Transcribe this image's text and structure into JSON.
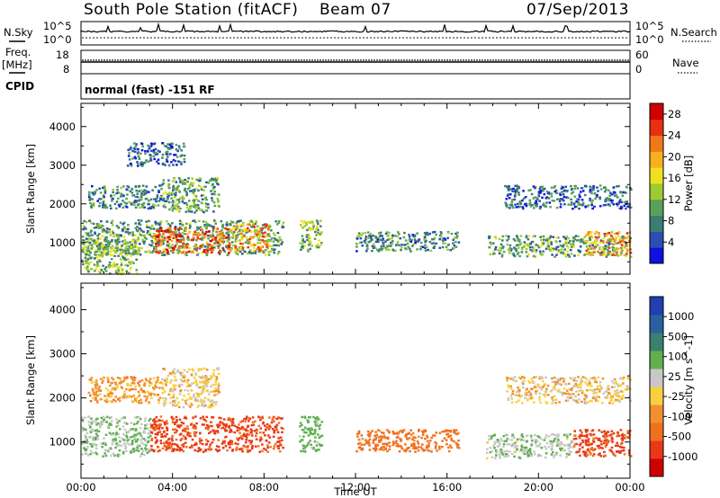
{
  "header": {
    "station": "South Pole Station (fitACF)",
    "beam": "Beam 07",
    "date": "07/Sep/2013"
  },
  "aux_panels": {
    "nsky_label": "N.Sky",
    "nsky_scale_hi": "10^5",
    "nsky_scale_lo": "10^0",
    "nsearch_label": "N.Search",
    "nsearch_scale_hi": "10^5",
    "nsearch_scale_lo": "10^0",
    "freq_label": "Freq.",
    "freq_unit": "[MHz]",
    "freq_hi": "18",
    "freq_lo": "8",
    "nave_label": "Nave",
    "nave_hi": "60",
    "nave_lo": "0",
    "cpid_label": "CPID",
    "cpid_text": "normal (fast) -151 RF"
  },
  "chart_data": [
    {
      "type": "heatmap",
      "panel": "power",
      "ylabel": "Slant Range [km]",
      "xlabel": "",
      "x_ticks": [
        "00:00",
        "04:00",
        "08:00",
        "12:00",
        "16:00",
        "20:00",
        "00:00"
      ],
      "y_ticks": [
        1000,
        2000,
        3000,
        4000
      ],
      "xlim_hours": [
        0,
        24
      ],
      "ylim": [
        180,
        4600
      ],
      "colorbar": {
        "label": "Power [dB]",
        "ticks": [
          4,
          8,
          12,
          16,
          20,
          24,
          28
        ],
        "range": [
          0,
          30
        ],
        "colors": [
          "#1010e0",
          "#2a4fb0",
          "#3a7e72",
          "#5aa05a",
          "#9ccc30",
          "#f0e020",
          "#f8b020",
          "#f07818",
          "#e83010",
          "#d00000"
        ]
      },
      "regions": [
        {
          "t0": 0.0,
          "t1": 8.8,
          "r0": 700,
          "r1": 1600,
          "value": 10
        },
        {
          "t0": 3.2,
          "t1": 6.5,
          "r0": 750,
          "r1": 1400,
          "value": 24
        },
        {
          "t0": 6.5,
          "t1": 8.2,
          "r0": 800,
          "r1": 1500,
          "value": 20
        },
        {
          "t0": 0.0,
          "t1": 2.5,
          "r0": 200,
          "r1": 1100,
          "value": 12
        },
        {
          "t0": 0.3,
          "t1": 3.5,
          "r0": 1900,
          "r1": 2500,
          "value": 8
        },
        {
          "t0": 2.0,
          "t1": 4.5,
          "r0": 3000,
          "r1": 3600,
          "value": 6
        },
        {
          "t0": 3.5,
          "t1": 6.0,
          "r0": 1800,
          "r1": 2700,
          "value": 10
        },
        {
          "t0": 9.5,
          "t1": 10.5,
          "r0": 800,
          "r1": 1600,
          "value": 12
        },
        {
          "t0": 12.0,
          "t1": 16.5,
          "r0": 800,
          "r1": 1300,
          "value": 8
        },
        {
          "t0": 17.7,
          "t1": 24.0,
          "r0": 650,
          "r1": 1200,
          "value": 10
        },
        {
          "t0": 22.0,
          "t1": 24.0,
          "r0": 700,
          "r1": 1300,
          "value": 20
        },
        {
          "t0": 18.5,
          "t1": 24.0,
          "r0": 1900,
          "r1": 2500,
          "value": 6
        }
      ]
    },
    {
      "type": "heatmap",
      "panel": "velocity",
      "ylabel": "Slant Range [km]",
      "xlabel": "Time UT",
      "x_ticks": [
        "00:00",
        "04:00",
        "08:00",
        "12:00",
        "16:00",
        "20:00",
        "00:00"
      ],
      "y_ticks": [
        1000,
        2000,
        3000,
        4000
      ],
      "xlim_hours": [
        0,
        24
      ],
      "ylim": [
        180,
        4600
      ],
      "colorbar": {
        "label": "Velocity [m s^-1]",
        "ticks": [
          "1000",
          "500",
          "100",
          "25",
          "-25",
          "-100",
          "-500",
          "-1000"
        ],
        "colors": [
          "#2040b0",
          "#2a60a0",
          "#3a8070",
          "#60b050",
          "#c8c8c8",
          "#f8d040",
          "#f09030",
          "#f07020",
          "#e83818",
          "#d00000"
        ]
      },
      "regions": [
        {
          "t0": 0.0,
          "t1": 3.0,
          "r0": 700,
          "r1": 1600,
          "value": 100
        },
        {
          "t0": 3.0,
          "t1": 8.8,
          "r0": 800,
          "r1": 1600,
          "value": -300
        },
        {
          "t0": 0.3,
          "t1": 3.5,
          "r0": 1900,
          "r1": 2500,
          "value": -50
        },
        {
          "t0": 3.5,
          "t1": 6.0,
          "r0": 1800,
          "r1": 2700,
          "value": 0
        },
        {
          "t0": 9.5,
          "t1": 10.5,
          "r0": 800,
          "r1": 1600,
          "value": 150
        },
        {
          "t0": 12.0,
          "t1": 16.5,
          "r0": 800,
          "r1": 1300,
          "value": -150
        },
        {
          "t0": 17.7,
          "t1": 21.5,
          "r0": 650,
          "r1": 1200,
          "value": 80
        },
        {
          "t0": 21.5,
          "t1": 24.0,
          "r0": 700,
          "r1": 1300,
          "value": -300
        },
        {
          "t0": 18.5,
          "t1": 24.0,
          "r0": 1900,
          "r1": 2500,
          "value": 0
        }
      ]
    }
  ]
}
